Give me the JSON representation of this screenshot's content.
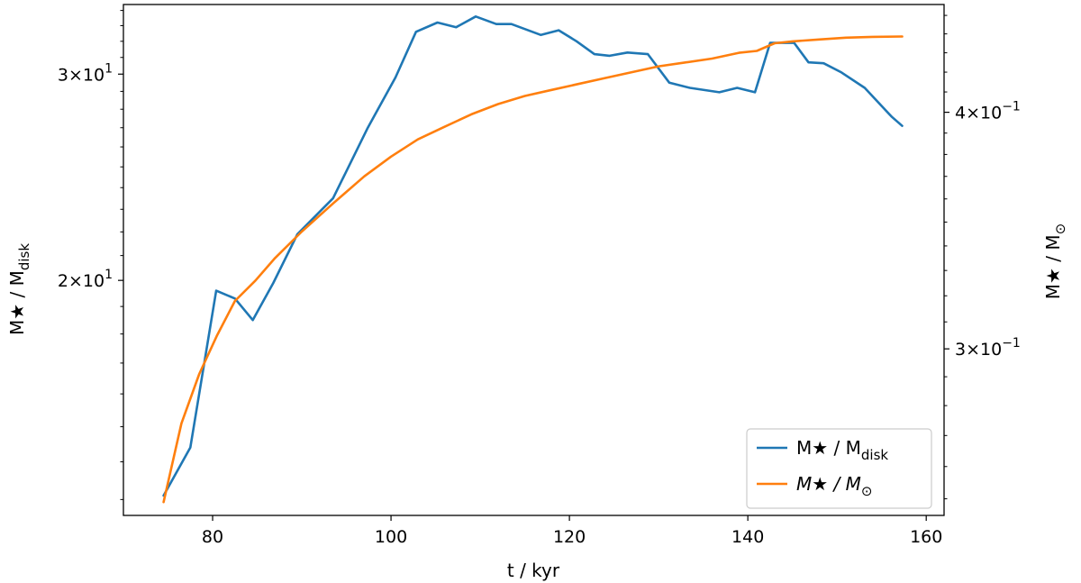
{
  "chart_data": {
    "type": "line",
    "xlabel": "t / kyr",
    "xlim": [
      70,
      162
    ],
    "xticks": [
      80,
      100,
      120,
      140,
      160
    ],
    "y_left": {
      "label": "M★ / Mdisk",
      "label_main": "M★ / M",
      "label_sub": "disk",
      "scale": "log",
      "lim": [
        12.6,
        34.4
      ],
      "ticks": [
        {
          "value": 20,
          "mantissa": "2",
          "exp": "1"
        },
        {
          "value": 30,
          "mantissa": "3",
          "exp": "1"
        }
      ]
    },
    "y_right": {
      "label": "M★ / M⊙",
      "label_main": "M★ / M",
      "label_sub": "⊙",
      "scale": "log",
      "lim": [
        0.245,
        0.456
      ],
      "ticks": [
        {
          "value": 0.3,
          "mantissa": "3",
          "exp": "−1"
        },
        {
          "value": 0.4,
          "mantissa": "4",
          "exp": "−1"
        }
      ]
    },
    "grid": false,
    "legend_position": "lower-right",
    "series": [
      {
        "name": "M★ / Mdisk",
        "legend_main": "M★ / M",
        "legend_sub": "disk",
        "axis": "left",
        "color": "#1f77b4",
        "x": [
          74.5,
          77.5,
          80.4,
          82.5,
          84.5,
          86.8,
          89.5,
          93.5,
          97.4,
          100.5,
          102.8,
          105.2,
          107.3,
          109.5,
          111.8,
          113.5,
          116.8,
          118.8,
          120.8,
          122.8,
          124.5,
          126.5,
          128.8,
          131.2,
          133.5,
          136.8,
          138.8,
          140.8,
          142.5,
          145.2,
          146.8,
          148.5,
          150.5,
          153.1,
          156.1,
          157.3
        ],
        "y": [
          13.1,
          14.4,
          19.6,
          19.3,
          18.5,
          19.9,
          21.9,
          23.5,
          27.0,
          29.8,
          32.6,
          33.2,
          32.9,
          33.6,
          33.1,
          33.1,
          32.4,
          32.7,
          32.0,
          31.2,
          31.1,
          31.3,
          31.2,
          29.5,
          29.2,
          28.95,
          29.2,
          28.95,
          31.9,
          31.9,
          30.7,
          30.65,
          30.1,
          29.2,
          27.6,
          27.1
        ],
        "line_style": "solid"
      },
      {
        "name": "M★ / M⊙",
        "legend_main": "M★ / M",
        "legend_sub": "⊙",
        "legend_italic": true,
        "axis": "right",
        "color": "#ff7f0e",
        "x": [
          74.5,
          76.5,
          78.5,
          80.5,
          82.5,
          84.8,
          87.0,
          90.0,
          93.5,
          97.0,
          100.0,
          103.0,
          106.0,
          109.0,
          112.0,
          115.0,
          118.0,
          121.0,
          124.0,
          127.0,
          130.0,
          133.0,
          136.0,
          139.0,
          141.0,
          143.0,
          145.0,
          148.0,
          151.0,
          154.0,
          157.3
        ],
        "y": [
          0.249,
          0.274,
          0.291,
          0.305,
          0.318,
          0.326,
          0.335,
          0.346,
          0.358,
          0.37,
          0.379,
          0.387,
          0.393,
          0.399,
          0.404,
          0.408,
          0.411,
          0.414,
          0.417,
          0.42,
          0.423,
          0.425,
          0.427,
          0.43,
          0.431,
          0.435,
          0.436,
          0.437,
          0.438,
          0.4384,
          0.4386
        ],
        "line_style": "solid"
      }
    ]
  }
}
